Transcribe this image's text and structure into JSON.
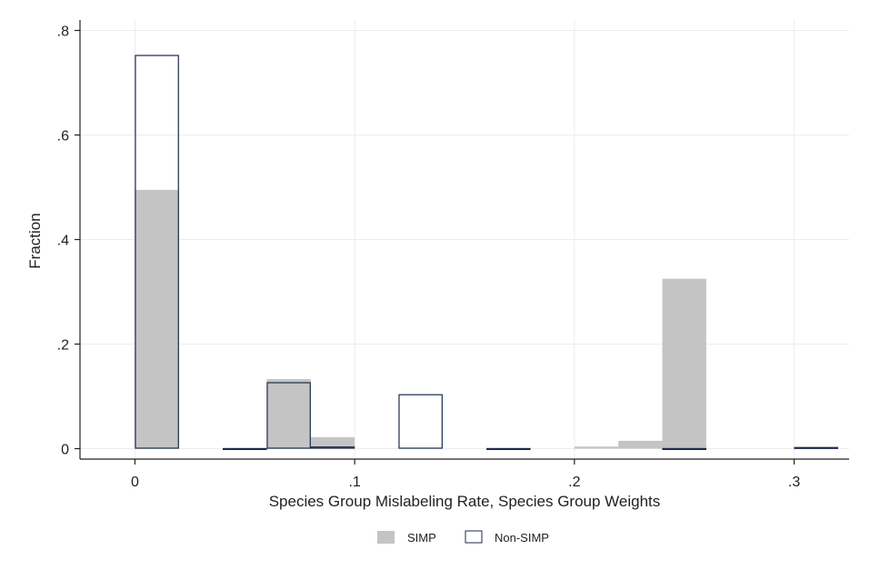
{
  "chart_data": {
    "type": "bar",
    "title": "",
    "xlabel": "Species Group Mislabeling Rate, Species Group Weights",
    "ylabel": "Fraction",
    "xlim": [
      -0.025,
      0.325
    ],
    "ylim": [
      -0.02,
      0.82
    ],
    "x_ticks": [
      0,
      0.1,
      0.2,
      0.3
    ],
    "x_tick_labels": [
      "0",
      ".1",
      ".2",
      ".3"
    ],
    "y_ticks": [
      0,
      0.2,
      0.4,
      0.6,
      0.8
    ],
    "y_tick_labels": [
      "0",
      ".2",
      ".4",
      ".6",
      ".8"
    ],
    "grid": true,
    "legend_position": "bottom",
    "bin_width": 0.02,
    "series": [
      {
        "name": "SIMP",
        "style": "filled",
        "color": "#c4c4c4",
        "bins": [
          {
            "x0": 0.0,
            "value": 0.495
          },
          {
            "x0": 0.06,
            "value": 0.133
          },
          {
            "x0": 0.08,
            "value": 0.022
          },
          {
            "x0": 0.2,
            "value": 0.004
          },
          {
            "x0": 0.22,
            "value": 0.015
          },
          {
            "x0": 0.24,
            "value": 0.325
          }
        ]
      },
      {
        "name": "Non-SIMP",
        "style": "outline",
        "color": "#1b2a4a",
        "bins": [
          {
            "x0": 0.0,
            "value": 0.753
          },
          {
            "x0": 0.04,
            "value": 0.001
          },
          {
            "x0": 0.06,
            "value": 0.127
          },
          {
            "x0": 0.08,
            "value": 0.004
          },
          {
            "x0": 0.12,
            "value": 0.104
          },
          {
            "x0": 0.16,
            "value": 0.001
          },
          {
            "x0": 0.24,
            "value": 0.001
          },
          {
            "x0": 0.3,
            "value": 0.003
          }
        ]
      }
    ]
  }
}
